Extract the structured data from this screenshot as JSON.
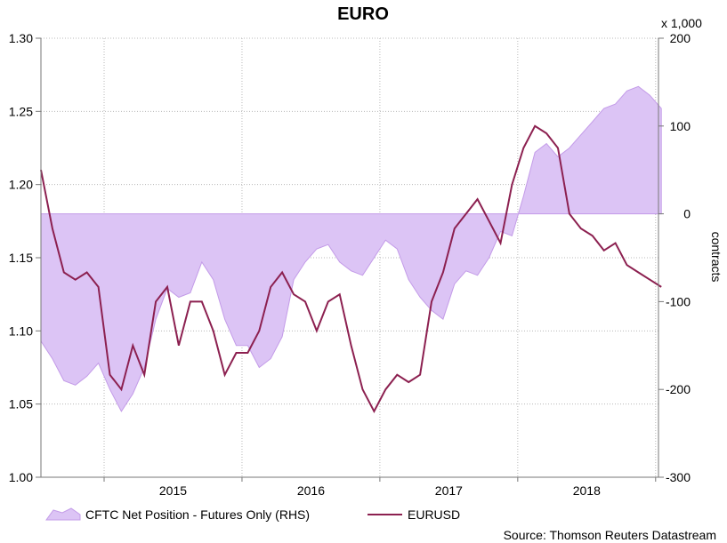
{
  "chart_data": {
    "type": "line",
    "title": "EURO",
    "x_ticks": [
      "2015",
      "2016",
      "2017",
      "2018"
    ],
    "left_axis": {
      "ylim": [
        1.0,
        1.3
      ],
      "ticks": [
        "1.30",
        "1.25",
        "1.20",
        "1.15",
        "1.10",
        "1.05",
        "1.00"
      ]
    },
    "right_axis": {
      "ylim": [
        -300,
        200
      ],
      "ticks": [
        "200",
        "100",
        "0",
        "-100",
        "-200",
        "-300"
      ],
      "label": "contracts",
      "multiplier": "x 1,000"
    },
    "grid": true,
    "legend_position": "bottom-left",
    "source": "Source: Thomson Reuters Datastream",
    "colors": {
      "area_fill": "#dcc4f5",
      "area_edge": "#c39be8",
      "line": "#8c2050",
      "grid": "#b8b8b8"
    },
    "series": [
      {
        "name": "CFTC Net Position - Futures Only (RHS)",
        "kind": "area",
        "axis": "right",
        "x": [
          "2014-07",
          "2014-08",
          "2014-09",
          "2014-10",
          "2014-11",
          "2014-12",
          "2015-01",
          "2015-02",
          "2015-03",
          "2015-04",
          "2015-05",
          "2015-06",
          "2015-07",
          "2015-08",
          "2015-09",
          "2015-10",
          "2015-11",
          "2015-12",
          "2016-01",
          "2016-02",
          "2016-03",
          "2016-04",
          "2016-05",
          "2016-06",
          "2016-07",
          "2016-08",
          "2016-09",
          "2016-10",
          "2016-11",
          "2016-12",
          "2017-01",
          "2017-02",
          "2017-03",
          "2017-04",
          "2017-05",
          "2017-06",
          "2017-07",
          "2017-08",
          "2017-09",
          "2017-10",
          "2017-11",
          "2017-12",
          "2018-01",
          "2018-02",
          "2018-03",
          "2018-04",
          "2018-05",
          "2018-06",
          "2018-07",
          "2018-08",
          "2018-09",
          "2018-10",
          "2018-11",
          "2018-12",
          "2019-01"
        ],
        "values": [
          -145,
          -165,
          -190,
          -195,
          -185,
          -170,
          -200,
          -225,
          -205,
          -175,
          -120,
          -85,
          -95,
          -90,
          -55,
          -75,
          -120,
          -150,
          -150,
          -175,
          -165,
          -140,
          -75,
          -55,
          -40,
          -35,
          -55,
          -65,
          -70,
          -50,
          -30,
          -40,
          -75,
          -95,
          -110,
          -120,
          -80,
          -65,
          -70,
          -50,
          -20,
          -25,
          20,
          70,
          80,
          65,
          75,
          90,
          105,
          120,
          125,
          140,
          145,
          135,
          120
        ]
      },
      {
        "name": "EURUSD",
        "kind": "line",
        "axis": "left",
        "x": [
          "2014-07",
          "2014-08",
          "2014-09",
          "2014-10",
          "2014-11",
          "2014-12",
          "2015-01",
          "2015-02",
          "2015-03",
          "2015-04",
          "2015-05",
          "2015-06",
          "2015-07",
          "2015-08",
          "2015-09",
          "2015-10",
          "2015-11",
          "2015-12",
          "2016-01",
          "2016-02",
          "2016-03",
          "2016-04",
          "2016-05",
          "2016-06",
          "2016-07",
          "2016-08",
          "2016-09",
          "2016-10",
          "2016-11",
          "2016-12",
          "2017-01",
          "2017-02",
          "2017-03",
          "2017-04",
          "2017-05",
          "2017-06",
          "2017-07",
          "2017-08",
          "2017-09",
          "2017-10",
          "2017-11",
          "2017-12",
          "2018-01",
          "2018-02",
          "2018-03",
          "2018-04",
          "2018-05",
          "2018-06",
          "2018-07",
          "2018-08",
          "2018-09",
          "2018-10",
          "2018-11",
          "2018-12",
          "2019-01"
        ],
        "values": [
          1.21,
          1.17,
          1.14,
          1.135,
          1.14,
          1.13,
          1.07,
          1.06,
          1.09,
          1.07,
          1.12,
          1.13,
          1.09,
          1.12,
          1.12,
          1.1,
          1.07,
          1.085,
          1.085,
          1.1,
          1.13,
          1.14,
          1.125,
          1.12,
          1.1,
          1.12,
          1.125,
          1.09,
          1.06,
          1.045,
          1.06,
          1.07,
          1.065,
          1.07,
          1.12,
          1.14,
          1.17,
          1.18,
          1.19,
          1.175,
          1.16,
          1.2,
          1.225,
          1.24,
          1.235,
          1.225,
          1.18,
          1.17,
          1.165,
          1.155,
          1.16,
          1.145,
          1.14,
          1.135,
          1.13
        ]
      }
    ]
  }
}
